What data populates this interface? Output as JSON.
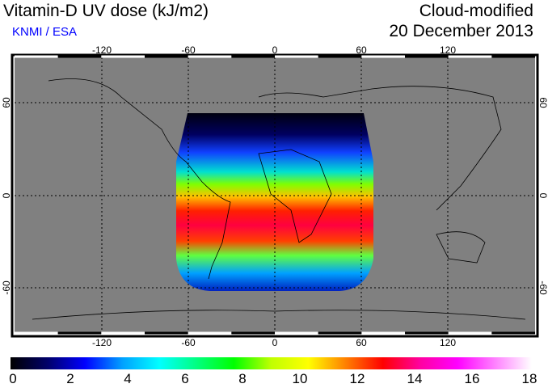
{
  "header": {
    "title": "Vitamin-D UV dose (kJ/m2)",
    "credit": "KNMI / ESA",
    "mode": "Cloud-modified",
    "date": "20 December 2013"
  },
  "map": {
    "lon_ticks": [
      "-120",
      "-60",
      "0",
      "60",
      "120"
    ],
    "lat_ticks_left": [
      "60",
      "0",
      "-60"
    ],
    "lat_ticks_right": [
      "60",
      "0",
      "-60"
    ],
    "land_color": "#808080"
  },
  "colorbar": {
    "ticks": [
      "0",
      "2",
      "4",
      "6",
      "8",
      "10",
      "12",
      "14",
      "16",
      "18"
    ],
    "range": [
      0,
      18
    ],
    "colors": [
      "#000000",
      "#00006a",
      "#0000ff",
      "#00a0ff",
      "#00ffff",
      "#00ff80",
      "#00ff00",
      "#c0ff00",
      "#ffff00",
      "#ff8000",
      "#ff0000",
      "#ff00a0",
      "#ff00ff",
      "#ff80ff",
      "#ffffff"
    ]
  }
}
